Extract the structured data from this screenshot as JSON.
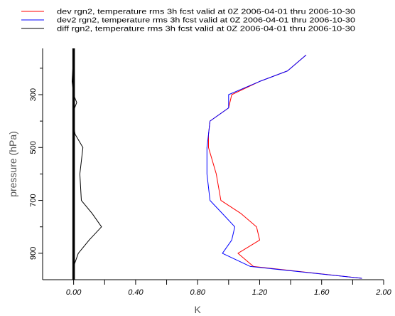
{
  "chart_data": {
    "type": "line",
    "title": "",
    "xlabel": "K",
    "ylabel": "pressure (hPa)",
    "xlim": [
      -0.2,
      2.0
    ],
    "ylim": [
      1000,
      125
    ],
    "x_ticks": [
      0.0,
      0.4,
      0.8,
      1.2,
      1.6,
      2.0
    ],
    "x_tick_labels": [
      "0.00",
      "0.40",
      "0.80",
      "1.20",
      "1.60",
      "2.00"
    ],
    "y_ticks": [
      300,
      500,
      700,
      900
    ],
    "y_tick_labels": [
      "300",
      "500",
      "700",
      "900"
    ],
    "grid": false,
    "legend_position": "top",
    "series": [
      {
        "name": "dev rgn2, temperature rms 3h fcst valid at 0Z 2006-04-01 thru 2006-10-30",
        "color": "#ff0000",
        "x": [
          1.5,
          1.38,
          1.2,
          1.02,
          1.0,
          0.88,
          0.87,
          0.87,
          0.92,
          0.95,
          1.08,
          1.18,
          1.2,
          1.06,
          1.16,
          1.86
        ],
        "y": [
          150,
          210,
          250,
          300,
          350,
          400,
          450,
          500,
          600,
          700,
          750,
          800,
          850,
          900,
          950,
          995
        ]
      },
      {
        "name": "dev2 rgn2, temperature rms 3h fcst valid at 0Z 2006-04-01 thru 2006-10-30",
        "color": "#0000ff",
        "x": [
          1.5,
          1.38,
          1.2,
          1.0,
          1.0,
          0.88,
          0.87,
          0.86,
          0.86,
          0.88,
          0.96,
          1.04,
          1.02,
          0.96,
          1.14,
          1.86
        ],
        "y": [
          150,
          210,
          250,
          300,
          350,
          400,
          450,
          500,
          600,
          700,
          750,
          800,
          850,
          900,
          950,
          995
        ]
      },
      {
        "name": "diff rgn2, temperature rms 3h fcst valid at 0Z 2006-04-01 thru 2006-10-30",
        "color": "#000000",
        "x": [
          0.0,
          -0.01,
          0.0,
          0.02,
          0.0,
          0.0,
          0.01,
          0.06,
          0.04,
          0.05,
          0.12,
          0.18,
          0.1,
          0.03,
          0.0,
          0.0
        ],
        "y": [
          150,
          250,
          300,
          330,
          360,
          420,
          450,
          500,
          600,
          700,
          750,
          800,
          850,
          900,
          950,
          995
        ]
      }
    ],
    "reference_line": {
      "x": 0.0,
      "color": "#000000"
    }
  }
}
